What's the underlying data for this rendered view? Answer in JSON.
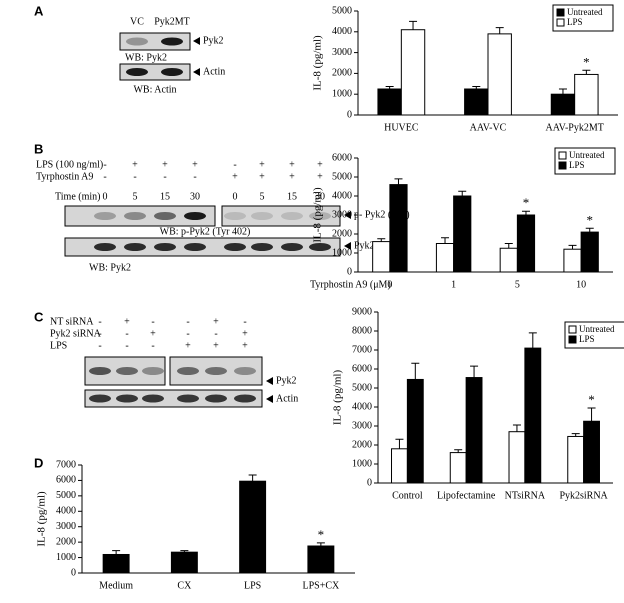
{
  "panel_labels": [
    "A",
    "B",
    "C",
    "D"
  ],
  "blots": {
    "A": {
      "lanes": [
        "VC",
        "Pyk2MT"
      ],
      "rows": [
        {
          "label": "Pyk2",
          "caption": "WB: Pyk2"
        },
        {
          "label": "Actin",
          "caption": "WB:  Actin"
        }
      ]
    },
    "B": {
      "conditions": [
        {
          "label": "LPS (100 ng/ml)",
          "signs": [
            "-",
            "+",
            "+",
            "+",
            "-",
            "+",
            "+",
            "+"
          ]
        },
        {
          "label": "Tyrphostin A9",
          "signs": [
            "-",
            "-",
            "-",
            "-",
            "+",
            "+",
            "+",
            "+"
          ]
        }
      ],
      "time": {
        "label": "Time (min)",
        "values": [
          "0",
          "5",
          "15",
          "30",
          "0",
          "5",
          "15",
          "30"
        ]
      },
      "rows": [
        {
          "label": "p- Pyk2 (402)",
          "caption": "WB: p-Pyk2 (Tyr 402)"
        },
        {
          "label": "Pyk2",
          "caption": "WB: Pyk2"
        }
      ]
    },
    "C": {
      "conditions": [
        {
          "label": "NT siRNA",
          "signs": [
            "-",
            "+",
            "-",
            "-",
            "+",
            "-"
          ]
        },
        {
          "label": "Pyk2 siRNA",
          "signs": [
            "-",
            "-",
            "+",
            "-",
            "-",
            "+"
          ]
        },
        {
          "label": "LPS",
          "signs": [
            "-",
            "-",
            "-",
            "+",
            "+",
            "+"
          ]
        }
      ],
      "rows": [
        {
          "label": "Pyk2"
        },
        {
          "label": "Actin"
        }
      ]
    }
  },
  "chart_data": [
    {
      "type": "bar",
      "y_label": "IL-8 (pg/ml)",
      "categories": [
        "HUVEC",
        "AAV-VC",
        "AAV-Pyk2MT"
      ],
      "series": [
        {
          "name": "Untreated",
          "color": "#000000",
          "values": [
            1250,
            1250,
            1000
          ],
          "errors": [
            120,
            120,
            250
          ],
          "annotations": [
            null,
            null,
            null
          ]
        },
        {
          "name": "LPS",
          "color": "#ffffff",
          "values": [
            4100,
            3900,
            1950
          ],
          "errors": [
            400,
            300,
            200
          ],
          "annotations": [
            null,
            null,
            "*"
          ]
        }
      ],
      "ylim": [
        0,
        5000
      ],
      "yticks": [
        0,
        1000,
        2000,
        3000,
        4000,
        5000
      ],
      "legend": "upper right"
    },
    {
      "type": "bar",
      "y_label": "IL-8 (pg/ml)",
      "x_label": "Tyrphostin A9 (μM)",
      "categories": [
        "0",
        "1",
        "5",
        "10"
      ],
      "series": [
        {
          "name": "Untreated",
          "color": "#ffffff",
          "values": [
            1600,
            1500,
            1250,
            1200
          ],
          "errors": [
            150,
            300,
            250,
            200
          ],
          "annotations": [
            null,
            null,
            null,
            null
          ]
        },
        {
          "name": "LPS",
          "color": "#000000",
          "values": [
            4600,
            4000,
            3000,
            2100
          ],
          "errors": [
            300,
            250,
            200,
            200
          ],
          "annotations": [
            null,
            null,
            "*",
            "*"
          ]
        }
      ],
      "ylim": [
        0,
        6000
      ],
      "yticks": [
        0,
        1000,
        2000,
        3000,
        4000,
        5000,
        6000
      ],
      "legend": "upper right"
    },
    {
      "type": "bar",
      "y_label": "IL-8 (pg/ml)",
      "categories": [
        "Control",
        "Lipofectamine",
        "NTsiRNA",
        "Pyk2siRNA"
      ],
      "series": [
        {
          "name": "Untreated",
          "color": "#ffffff",
          "values": [
            1800,
            1600,
            2700,
            2450
          ],
          "errors": [
            500,
            150,
            350,
            150
          ],
          "annotations": [
            null,
            null,
            null,
            null
          ]
        },
        {
          "name": "LPS",
          "color": "#000000",
          "values": [
            5450,
            5550,
            7100,
            3250
          ],
          "errors": [
            850,
            600,
            800,
            700
          ],
          "annotations": [
            null,
            null,
            null,
            "*"
          ]
        }
      ],
      "ylim": [
        0,
        9000
      ],
      "yticks": [
        0,
        1000,
        2000,
        3000,
        4000,
        5000,
        6000,
        7000,
        8000,
        9000
      ],
      "legend": "upper right"
    },
    {
      "type": "bar",
      "y_label": "IL-8 (pg/ml)",
      "categories": [
        "Medium",
        "CX",
        "LPS",
        "LPS+CX"
      ],
      "values": [
        1200,
        1350,
        5950,
        1750
      ],
      "errors": [
        250,
        100,
        400,
        200
      ],
      "annotations": [
        null,
        null,
        null,
        "*"
      ],
      "color": "#000000",
      "ylim": [
        0,
        7000
      ],
      "yticks": [
        0,
        1000,
        2000,
        3000,
        4000,
        5000,
        6000,
        7000
      ]
    }
  ]
}
